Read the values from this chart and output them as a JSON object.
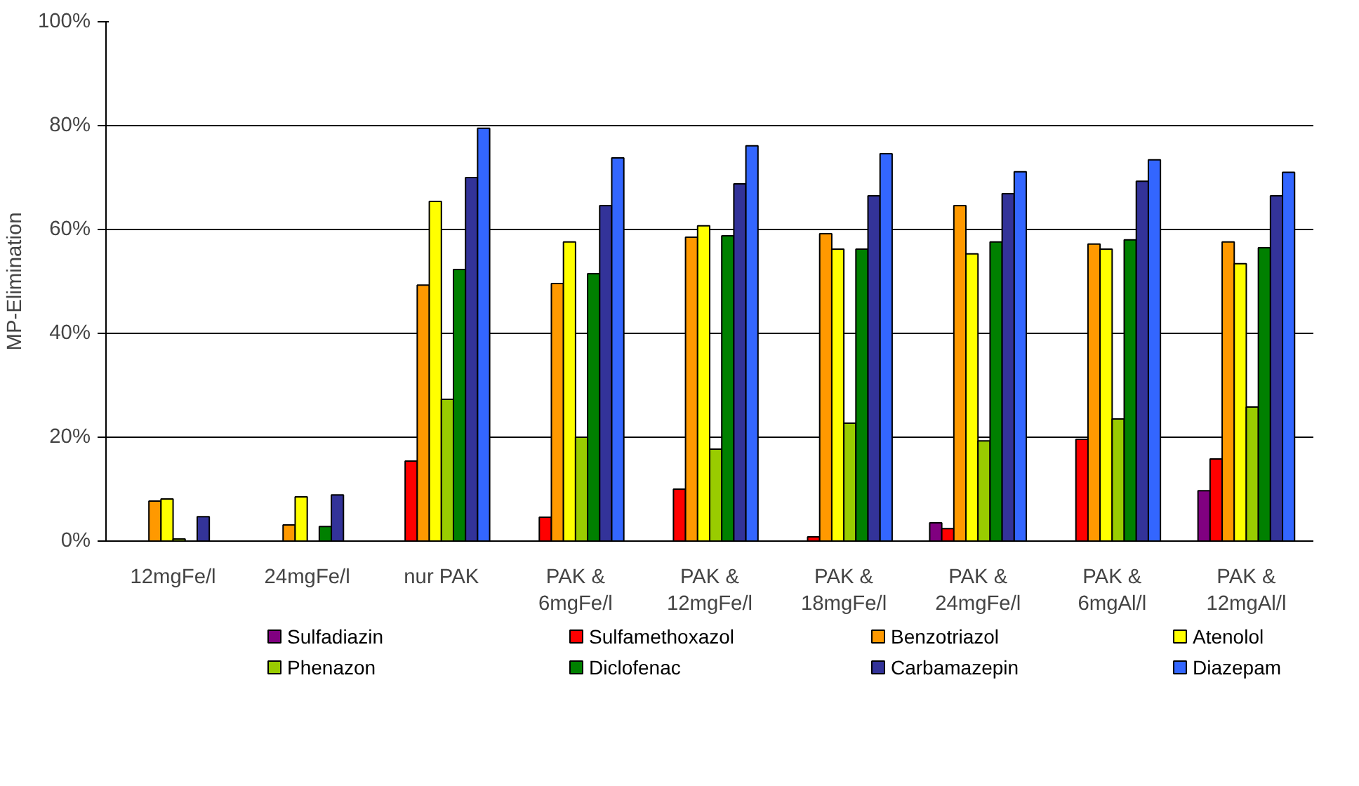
{
  "chart_data": {
    "type": "bar",
    "ylabel": "MP-Elimination",
    "categories": [
      "12mgFe/l",
      "24mgFe/l",
      "nur PAK",
      "PAK &\n6mgFe/l",
      "PAK &\n12mgFe/l",
      "PAK &\n18mgFe/l",
      "PAK &\n24mgFe/l",
      "PAK &\n6mgAl/l",
      "PAK &\n12mgAl/l"
    ],
    "series": [
      {
        "name": "Sulfadiazin",
        "color": "#800080",
        "values": [
          null,
          null,
          null,
          null,
          null,
          null,
          3.5,
          null,
          9.7
        ]
      },
      {
        "name": "Sulfamethoxazol",
        "color": "#ff0000",
        "values": [
          null,
          null,
          15.4,
          4.6,
          10.0,
          0.8,
          2.4,
          19.6,
          15.8
        ]
      },
      {
        "name": "Benzotriazol",
        "color": "#ff9900",
        "values": [
          7.7,
          3.1,
          49.3,
          49.6,
          58.5,
          59.2,
          64.6,
          57.2,
          57.6
        ]
      },
      {
        "name": "Atenolol",
        "color": "#ffff00",
        "values": [
          8.1,
          8.5,
          65.4,
          57.6,
          60.7,
          56.2,
          55.3,
          56.2,
          53.4
        ]
      },
      {
        "name": "Phenazon",
        "color": "#99cc00",
        "values": [
          0.4,
          null,
          27.3,
          20.0,
          17.7,
          22.7,
          19.3,
          23.5,
          25.8
        ]
      },
      {
        "name": "Diclofenac",
        "color": "#008000",
        "values": [
          null,
          2.8,
          52.3,
          51.5,
          58.8,
          56.2,
          57.6,
          58.0,
          56.5
        ]
      },
      {
        "name": "Carbamazepin",
        "color": "#333399",
        "values": [
          4.7,
          8.9,
          70.0,
          64.6,
          68.8,
          66.5,
          66.9,
          69.3,
          66.5
        ]
      },
      {
        "name": "Diazepam",
        "color": "#3366ff",
        "values": [
          null,
          null,
          79.5,
          73.8,
          76.1,
          74.6,
          71.1,
          73.4,
          71.0
        ]
      }
    ],
    "ylim": [
      0,
      100
    ],
    "yticks": [
      {
        "value": 0,
        "label": "0%"
      },
      {
        "value": 20,
        "label": "20%"
      },
      {
        "value": 40,
        "label": "40%"
      },
      {
        "value": 60,
        "label": "60%"
      },
      {
        "value": 80,
        "label": "80%"
      },
      {
        "value": 100,
        "label": "100%"
      }
    ],
    "grid": "y",
    "legend": "bottom"
  }
}
